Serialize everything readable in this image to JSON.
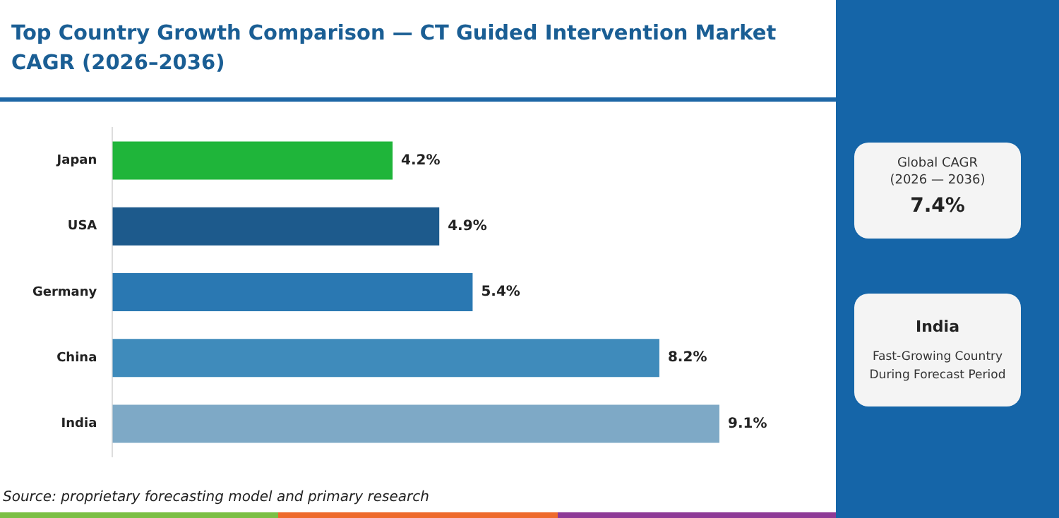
{
  "chart_data": {
    "type": "bar",
    "orientation": "horizontal",
    "title": "Top Country Growth Comparison — CT Guided Intervention Market CAGR (2026–2036)",
    "categories": [
      "Japan",
      "USA",
      "Germany",
      "China",
      "India"
    ],
    "values": [
      4.2,
      4.9,
      5.4,
      8.2,
      9.1
    ],
    "colors": [
      "#1fb53a",
      "#1d5a8c",
      "#2a78b2",
      "#3f8bbb",
      "#7ea9c6"
    ],
    "value_labels": [
      "4.2%",
      "4.9%",
      "5.4%",
      "8.2%",
      "9.1%"
    ],
    "legend": false,
    "tick_labels": "y",
    "annotations": [
      "Global CAGR",
      "(2026 — 2036)",
      "7.4%",
      "India",
      "Fast-Growing Country",
      "During Forecast Period",
      "Source: proprietary forecasting model and primary research"
    ]
  }
}
